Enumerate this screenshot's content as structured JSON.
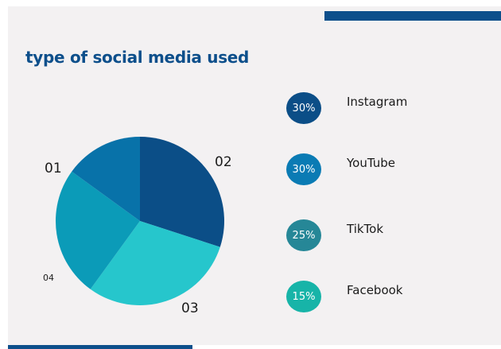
{
  "chart_data": {
    "type": "pie",
    "title": "type of social media used",
    "slices": [
      {
        "label": "01",
        "name": "Instagram",
        "value": 30,
        "display": "30%",
        "color": "#0b4e87"
      },
      {
        "label": "02",
        "name": "YouTube",
        "value": 30,
        "display": "30%",
        "color": "#26c6cc"
      },
      {
        "label": "03",
        "name": "TikTok",
        "value": 25,
        "display": "25%",
        "color": "#0b9bb8"
      },
      {
        "label": "04",
        "name": "Facebook",
        "value": 15,
        "display": "15%",
        "color": "#0872a9"
      }
    ],
    "legend": [
      {
        "badge": "30%",
        "name": "Instagram",
        "color": "#0b4e87"
      },
      {
        "badge": "30%",
        "name": "YouTube",
        "color": "#0a7bb4"
      },
      {
        "badge": "25%",
        "name": "TikTok",
        "color": "#268797"
      },
      {
        "badge": "15%",
        "name": "Facebook",
        "color": "#17b4a8"
      }
    ],
    "legend_placement": "right"
  },
  "decor": {
    "accent": "#0d4f8b",
    "background": "#f3f1f2"
  }
}
